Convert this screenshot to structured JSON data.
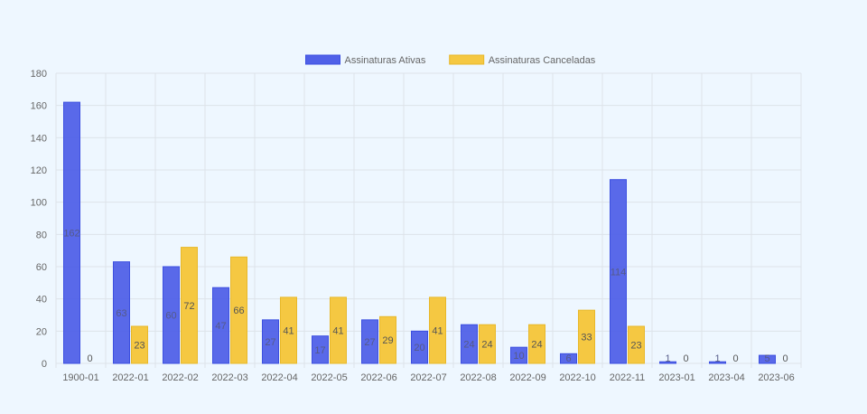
{
  "chart_data": {
    "type": "bar",
    "categories": [
      "1900-01",
      "2022-01",
      "2022-02",
      "2022-03",
      "2022-04",
      "2022-05",
      "2022-06",
      "2022-07",
      "2022-08",
      "2022-09",
      "2022-10",
      "2022-11",
      "2023-01",
      "2023-04",
      "2023-06"
    ],
    "series": [
      {
        "name": "Assinaturas Ativas",
        "color": "#5061e8",
        "values": [
          162,
          63,
          60,
          47,
          27,
          17,
          27,
          20,
          24,
          10,
          6,
          114,
          1,
          1,
          5
        ]
      },
      {
        "name": "Assinaturas Canceladas",
        "color": "#f5c842",
        "values": [
          0,
          23,
          72,
          66,
          41,
          41,
          29,
          41,
          24,
          24,
          33,
          23,
          0,
          0,
          0
        ]
      }
    ],
    "y_ticks": [
      0,
      20,
      40,
      60,
      80,
      100,
      120,
      140,
      160,
      180
    ],
    "ylim": [
      0,
      180
    ],
    "grid": true,
    "legend_position": "top"
  }
}
